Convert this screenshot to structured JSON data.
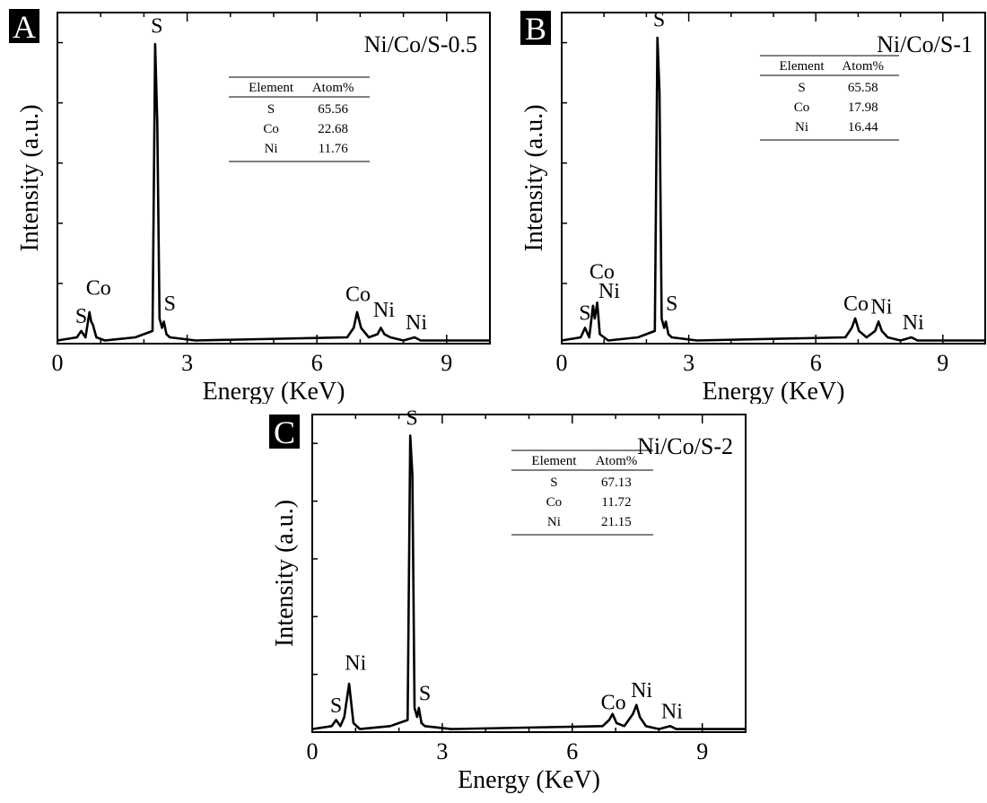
{
  "chart_data": [
    {
      "type": "line",
      "panel_label": "A",
      "title": "Ni/Co/S-0.5",
      "xlabel": "Energy (KeV)",
      "ylabel": "Intensity (a.u.)",
      "xlim": [
        0,
        10
      ],
      "ylim": [
        0,
        1.05
      ],
      "xticks": [
        "0",
        "3",
        "6",
        "9"
      ],
      "x": [
        0,
        0.45,
        0.55,
        0.65,
        0.74,
        0.78,
        0.82,
        0.9,
        1.1,
        1.8,
        2.2,
        2.26,
        2.31,
        2.36,
        2.42,
        2.46,
        2.52,
        2.6,
        3.2,
        6.7,
        6.85,
        6.93,
        7.02,
        7.2,
        7.4,
        7.48,
        7.56,
        7.7,
        8.0,
        8.26,
        8.4,
        10
      ],
      "y": [
        0.01,
        0.02,
        0.04,
        0.02,
        0.1,
        0.07,
        0.06,
        0.02,
        0.01,
        0.02,
        0.04,
        0.95,
        0.7,
        0.08,
        0.05,
        0.07,
        0.03,
        0.02,
        0.01,
        0.02,
        0.05,
        0.1,
        0.05,
        0.02,
        0.03,
        0.05,
        0.03,
        0.02,
        0.01,
        0.02,
        0.01,
        0.01
      ],
      "peak_labels": [
        {
          "text": "S",
          "x": 0.55,
          "y": 0.06
        },
        {
          "text": "Co",
          "x": 0.95,
          "y": 0.15
        },
        {
          "text": "S",
          "x": 2.3,
          "y": 0.98
        },
        {
          "text": "S",
          "x": 2.6,
          "y": 0.1
        },
        {
          "text": "Co",
          "x": 6.95,
          "y": 0.13
        },
        {
          "text": "Ni",
          "x": 7.55,
          "y": 0.08
        },
        {
          "text": "Ni",
          "x": 8.3,
          "y": 0.04
        }
      ],
      "table": {
        "headers": [
          "Element",
          "Atom%"
        ],
        "rows": [
          [
            "S",
            "65.56"
          ],
          [
            "Co",
            "22.68"
          ],
          [
            "Ni",
            "11.76"
          ]
        ]
      }
    },
    {
      "type": "line",
      "panel_label": "B",
      "title": "Ni/Co/S-1",
      "xlabel": "Energy (KeV)",
      "ylabel": "Intensity (a.u.)",
      "xlim": [
        0,
        10
      ],
      "ylim": [
        0,
        1.05
      ],
      "xticks": [
        "0",
        "3",
        "6",
        "9"
      ],
      "x": [
        0,
        0.45,
        0.55,
        0.65,
        0.74,
        0.78,
        0.84,
        0.9,
        1.1,
        1.8,
        2.2,
        2.26,
        2.31,
        2.36,
        2.42,
        2.46,
        2.52,
        2.6,
        3.2,
        6.7,
        6.85,
        6.93,
        7.02,
        7.2,
        7.4,
        7.48,
        7.56,
        7.7,
        8.0,
        8.26,
        8.4,
        10
      ],
      "y": [
        0.01,
        0.02,
        0.05,
        0.02,
        0.12,
        0.08,
        0.13,
        0.03,
        0.01,
        0.02,
        0.04,
        0.97,
        0.8,
        0.08,
        0.05,
        0.07,
        0.03,
        0.02,
        0.01,
        0.02,
        0.05,
        0.08,
        0.04,
        0.02,
        0.04,
        0.07,
        0.04,
        0.02,
        0.01,
        0.02,
        0.01,
        0.01
      ],
      "peak_labels": [
        {
          "text": "S",
          "x": 0.55,
          "y": 0.07
        },
        {
          "text": "Co",
          "x": 0.95,
          "y": 0.2
        },
        {
          "text": "Ni",
          "x": 1.12,
          "y": 0.14
        },
        {
          "text": "S",
          "x": 2.3,
          "y": 1.0
        },
        {
          "text": "S",
          "x": 2.6,
          "y": 0.1
        },
        {
          "text": "Co",
          "x": 6.95,
          "y": 0.1
        },
        {
          "text": "Ni",
          "x": 7.55,
          "y": 0.09
        },
        {
          "text": "Ni",
          "x": 8.3,
          "y": 0.04
        }
      ],
      "table": {
        "headers": [
          "Element",
          "Atom%"
        ],
        "rows": [
          [
            "S",
            "65.58"
          ],
          [
            "Co",
            "17.98"
          ],
          [
            "Ni",
            "16.44"
          ]
        ]
      }
    },
    {
      "type": "line",
      "panel_label": "C",
      "title": "Ni/Co/S-2",
      "xlabel": "Energy (KeV)",
      "ylabel": "Intensity (a.u.)",
      "xlim": [
        0,
        10
      ],
      "ylim": [
        0,
        1.05
      ],
      "xticks": [
        "0",
        "3",
        "6",
        "9"
      ],
      "x": [
        0,
        0.45,
        0.55,
        0.65,
        0.74,
        0.85,
        0.95,
        1.1,
        1.8,
        2.2,
        2.26,
        2.31,
        2.36,
        2.42,
        2.46,
        2.52,
        2.6,
        3.2,
        6.7,
        6.85,
        6.93,
        7.02,
        7.2,
        7.4,
        7.48,
        7.56,
        7.7,
        8.0,
        8.26,
        8.4,
        10
      ],
      "y": [
        0.01,
        0.02,
        0.04,
        0.02,
        0.05,
        0.16,
        0.03,
        0.01,
        0.02,
        0.04,
        0.98,
        0.85,
        0.08,
        0.05,
        0.08,
        0.03,
        0.02,
        0.01,
        0.02,
        0.04,
        0.06,
        0.03,
        0.02,
        0.06,
        0.09,
        0.05,
        0.02,
        0.01,
        0.02,
        0.01,
        0.01
      ],
      "peak_labels": [
        {
          "text": "S",
          "x": 0.55,
          "y": 0.06
        },
        {
          "text": "Ni",
          "x": 1.0,
          "y": 0.2
        },
        {
          "text": "S",
          "x": 2.3,
          "y": 1.01
        },
        {
          "text": "S",
          "x": 2.6,
          "y": 0.1
        },
        {
          "text": "Co",
          "x": 6.95,
          "y": 0.07
        },
        {
          "text": "Ni",
          "x": 7.6,
          "y": 0.11
        },
        {
          "text": "Ni",
          "x": 8.3,
          "y": 0.04
        }
      ],
      "table": {
        "headers": [
          "Element",
          "Atom%"
        ],
        "rows": [
          [
            "S",
            "67.13"
          ],
          [
            "Co",
            "11.72"
          ],
          [
            "Ni",
            "21.15"
          ]
        ]
      }
    }
  ]
}
